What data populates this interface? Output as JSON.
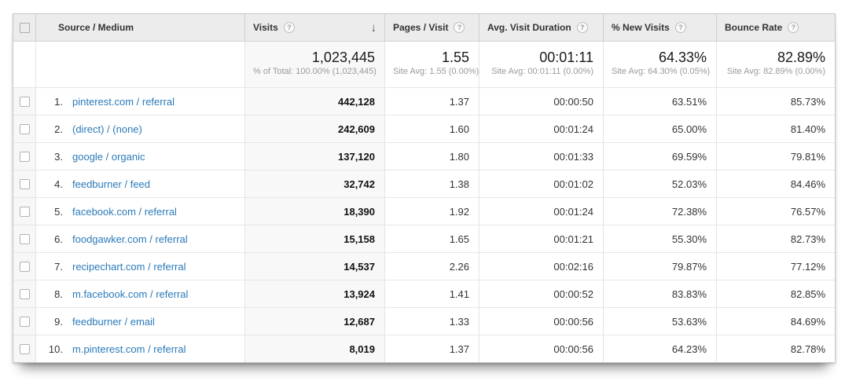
{
  "colors": {
    "link_blue": "#2a7ab9",
    "header_bg": "#ececec",
    "sorted_column_bg": "#f8f8f8"
  },
  "icons": {
    "help": "?",
    "sort_descending": "↓"
  },
  "table": {
    "columns": [
      {
        "key": "source",
        "label": "Source / Medium"
      },
      {
        "key": "visits",
        "label": "Visits"
      },
      {
        "key": "pages",
        "label": "Pages / Visit"
      },
      {
        "key": "duration",
        "label": "Avg. Visit Duration"
      },
      {
        "key": "new",
        "label": "% New Visits"
      },
      {
        "key": "bounce",
        "label": "Bounce Rate"
      }
    ],
    "summary": {
      "visits": "1,023,445",
      "visits_sub": "% of Total: 100.00% (1,023,445)",
      "pages": "1.55",
      "pages_sub": "Site Avg: 1.55 (0.00%)",
      "duration": "00:01:11",
      "duration_sub": "Site Avg: 00:01:11 (0.00%)",
      "new": "64.33%",
      "new_sub": "Site Avg: 64.30% (0.05%)",
      "bounce": "82.89%",
      "bounce_sub": "Site Avg: 82.89% (0.00%)"
    },
    "rows": [
      {
        "index": "1.",
        "source": "pinterest.com / referral",
        "visits": "442,128",
        "pages": "1.37",
        "duration": "00:00:50",
        "new": "63.51%",
        "bounce": "85.73%"
      },
      {
        "index": "2.",
        "source": "(direct) / (none)",
        "visits": "242,609",
        "pages": "1.60",
        "duration": "00:01:24",
        "new": "65.00%",
        "bounce": "81.40%"
      },
      {
        "index": "3.",
        "source": "google / organic",
        "visits": "137,120",
        "pages": "1.80",
        "duration": "00:01:33",
        "new": "69.59%",
        "bounce": "79.81%"
      },
      {
        "index": "4.",
        "source": "feedburner / feed",
        "visits": "32,742",
        "pages": "1.38",
        "duration": "00:01:02",
        "new": "52.03%",
        "bounce": "84.46%"
      },
      {
        "index": "5.",
        "source": "facebook.com / referral",
        "visits": "18,390",
        "pages": "1.92",
        "duration": "00:01:24",
        "new": "72.38%",
        "bounce": "76.57%"
      },
      {
        "index": "6.",
        "source": "foodgawker.com / referral",
        "visits": "15,158",
        "pages": "1.65",
        "duration": "00:01:21",
        "new": "55.30%",
        "bounce": "82.73%"
      },
      {
        "index": "7.",
        "source": "recipechart.com / referral",
        "visits": "14,537",
        "pages": "2.26",
        "duration": "00:02:16",
        "new": "79.87%",
        "bounce": "77.12%"
      },
      {
        "index": "8.",
        "source": "m.facebook.com / referral",
        "visits": "13,924",
        "pages": "1.41",
        "duration": "00:00:52",
        "new": "83.83%",
        "bounce": "82.85%"
      },
      {
        "index": "9.",
        "source": "feedburner / email",
        "visits": "12,687",
        "pages": "1.33",
        "duration": "00:00:56",
        "new": "53.63%",
        "bounce": "84.69%"
      },
      {
        "index": "10.",
        "source": "m.pinterest.com / referral",
        "visits": "8,019",
        "pages": "1.37",
        "duration": "00:00:56",
        "new": "64.23%",
        "bounce": "82.78%"
      }
    ]
  }
}
